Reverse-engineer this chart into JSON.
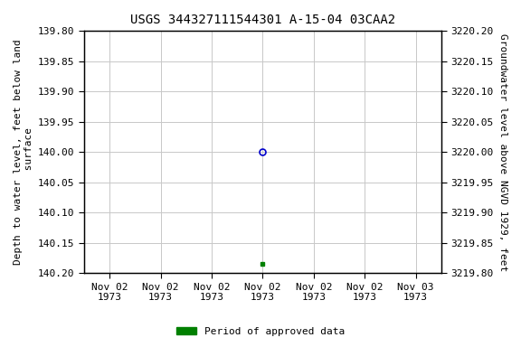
{
  "title": "USGS 344327111544301 A-15-04 03CAA2",
  "ylabel_left": "Depth to water level, feet below land\n surface",
  "ylabel_right": "Groundwater level above NGVD 1929, feet",
  "ylim_left": [
    139.8,
    140.2
  ],
  "ylim_right_top": 3220.2,
  "ylim_right_bottom": 3219.8,
  "left_ticks": [
    139.8,
    139.85,
    139.9,
    139.95,
    140.0,
    140.05,
    140.1,
    140.15,
    140.2
  ],
  "right_ticks": [
    3220.2,
    3220.15,
    3220.1,
    3220.05,
    3220.0,
    3219.95,
    3219.9,
    3219.85,
    3219.8
  ],
  "x_tick_labels": [
    "Nov 02\n1973",
    "Nov 02\n1973",
    "Nov 02\n1973",
    "Nov 02\n1973",
    "Nov 02\n1973",
    "Nov 02\n1973",
    "Nov 03\n1973"
  ],
  "x_tick_positions": [
    0,
    1,
    2,
    3,
    4,
    5,
    6
  ],
  "xlim": [
    -0.5,
    6.5
  ],
  "point_open_x": 3,
  "point_open_y": 140.0,
  "point_open_color": "#0000cc",
  "point_open_size": 5,
  "point_filled_x": 3,
  "point_filled_y": 140.185,
  "point_filled_color": "#008000",
  "point_filled_size": 3.5,
  "grid_color": "#c8c8c8",
  "bg_color": "#ffffff",
  "legend_label": "Period of approved data",
  "legend_color": "#008000",
  "title_fontsize": 10,
  "label_fontsize": 8,
  "tick_fontsize": 8
}
